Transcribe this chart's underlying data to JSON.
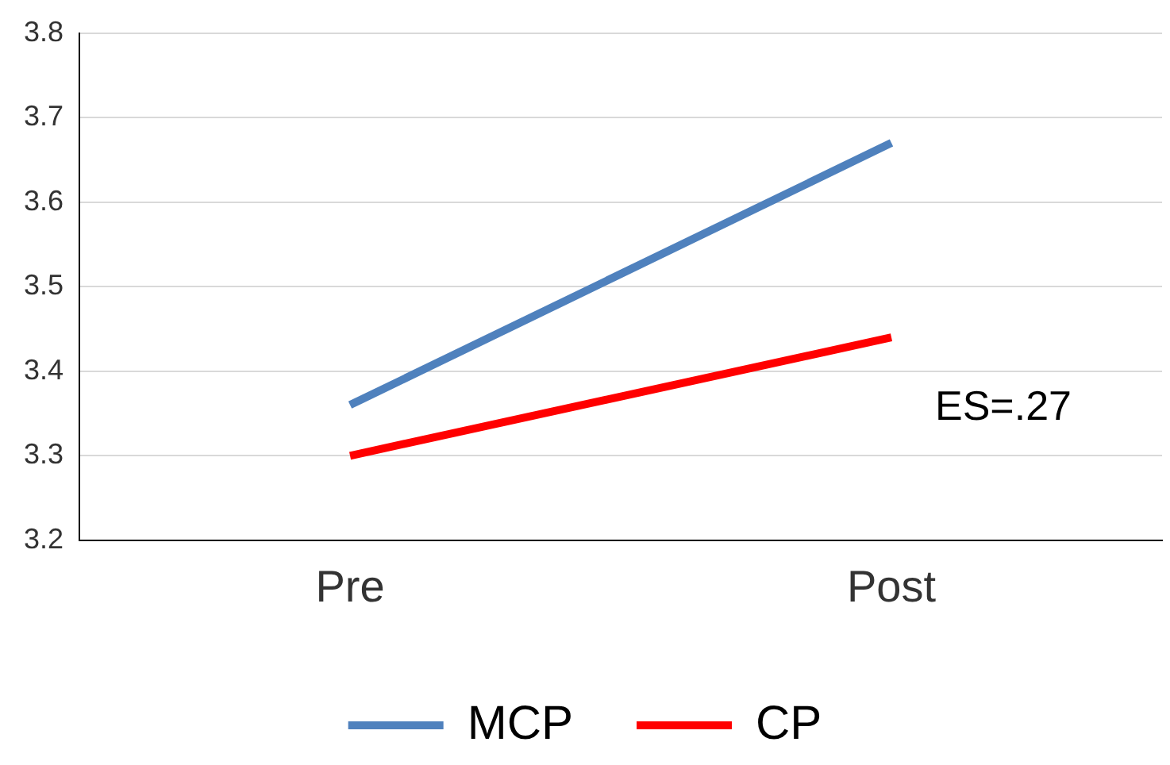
{
  "chart_data": {
    "type": "line",
    "categories": [
      "Pre",
      "Post"
    ],
    "series": [
      {
        "name": "MCP",
        "color": "#4f81bd",
        "values": [
          3.36,
          3.67
        ]
      },
      {
        "name": "CP",
        "color": "#ff0000",
        "values": [
          3.3,
          3.44
        ]
      }
    ],
    "ylim": [
      3.2,
      3.8
    ],
    "yticks": [
      3.2,
      3.3,
      3.4,
      3.5,
      3.6,
      3.7,
      3.8
    ],
    "grid": "y",
    "legend": "bottom",
    "marker": "none",
    "line_style": "solid",
    "annotations": [
      "ES=.27"
    ]
  }
}
